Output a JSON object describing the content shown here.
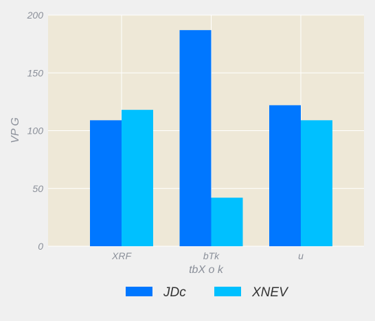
{
  "chart_data": {
    "type": "bar",
    "categories": [
      "XRF",
      "bTk",
      "u"
    ],
    "series": [
      {
        "name": "JDc",
        "values": [
          109,
          187,
          122
        ],
        "color": "#0077ff"
      },
      {
        "name": "XNEV",
        "values": [
          118,
          42,
          109
        ],
        "color": "#00c0ff"
      }
    ],
    "xlabel": "tbX o k",
    "ylabel": "VP  G",
    "ylim": [
      0,
      200
    ],
    "yticks": [
      0,
      50,
      100,
      150,
      200
    ],
    "grid": true,
    "legend_position": "bottom-center",
    "plot_background": "#eee8d7",
    "figure_background": "#f0f0f0"
  }
}
